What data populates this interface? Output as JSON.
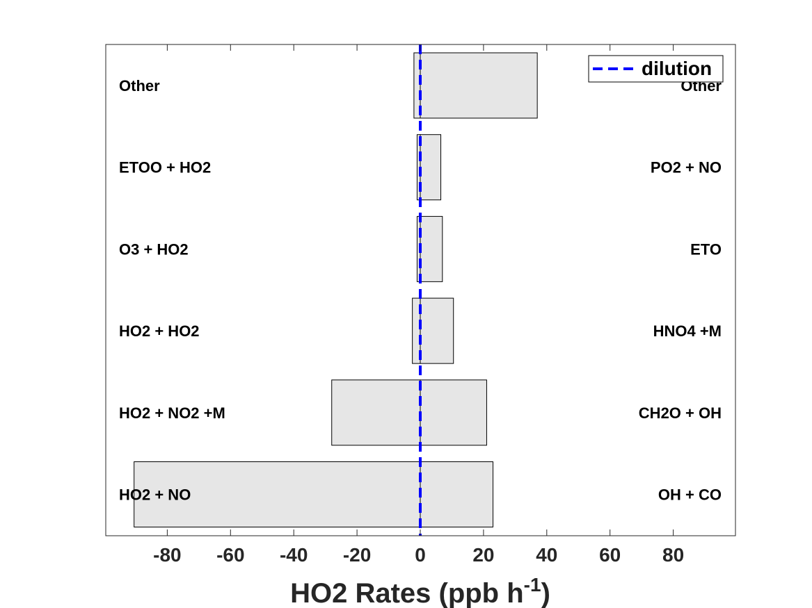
{
  "chart_data": {
    "type": "bar",
    "orientation": "horizontal",
    "xlabel": "HO2 Rates (ppb h",
    "xlabel_superscript": "-1",
    "xlabel_suffix": ")",
    "xlim": [
      -100,
      100
    ],
    "xticks": [
      -80,
      -60,
      -40,
      -20,
      0,
      20,
      40,
      60,
      80
    ],
    "grid": false,
    "legend": {
      "placement": "top-right",
      "entries": [
        {
          "name": "dilution",
          "style": "dashed-line",
          "color": "#0000ff"
        }
      ]
    },
    "dilution_value": 0,
    "bar_color": "#e6e6e6",
    "rows": [
      {
        "loss_label": "Other",
        "prod_label": "Other",
        "loss": -2,
        "production": 37
      },
      {
        "loss_label": "ETOO + HO2",
        "prod_label": "PO2 + NO",
        "loss": -1,
        "production": 6.5
      },
      {
        "loss_label": "O3 + HO2",
        "prod_label": "ETO",
        "loss": -1,
        "production": 7
      },
      {
        "loss_label": "HO2 + HO2",
        "prod_label": "HNO4 +M",
        "loss": -2.5,
        "production": 10.5
      },
      {
        "loss_label": "HO2 + NO2 +M",
        "prod_label": "CH2O + OH",
        "loss": -28,
        "production": 21
      },
      {
        "loss_label": "HO2 + NO",
        "prod_label": "OH + CO",
        "loss": -90.5,
        "production": 23
      }
    ]
  }
}
